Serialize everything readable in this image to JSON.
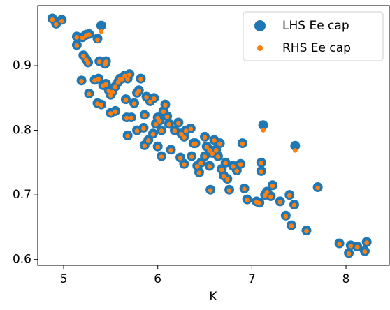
{
  "chart_data": {
    "type": "scatter",
    "x_label": "K",
    "legend": "upper right",
    "xlim": [
      4.725,
      8.46
    ],
    "ylim": [
      0.591,
      0.993
    ],
    "xticks": [
      5,
      6,
      7,
      8
    ],
    "yticks": [
      0.6,
      0.7,
      0.8,
      0.9
    ],
    "series": [
      {
        "name": "LHS Ee cap",
        "color": "#1f77b4",
        "x": [
          4.88,
          4.92,
          4.98,
          5.14,
          5.14,
          5.2,
          5.24,
          5.27,
          5.36,
          5.4,
          5.19,
          5.21,
          5.24,
          5.26,
          5.27,
          5.33,
          5.37,
          5.36,
          5.4,
          5.38,
          5.44,
          5.45,
          5.42,
          5.45,
          5.48,
          5.5,
          5.52,
          5.55,
          5.5,
          5.55,
          5.58,
          5.6,
          5.62,
          5.65,
          5.68,
          5.7,
          5.66,
          5.67,
          5.72,
          5.75,
          5.78,
          5.8,
          5.82,
          5.68,
          5.78,
          5.85,
          5.86,
          5.88,
          5.92,
          5.96,
          5.86,
          5.9,
          5.95,
          5.98,
          6.0,
          6.02,
          6.04,
          6.06,
          6.08,
          6.1,
          6.12,
          6.0,
          6.04,
          6.14,
          6.18,
          6.22,
          6.25,
          6.28,
          6.3,
          6.24,
          6.28,
          6.35,
          6.38,
          6.4,
          6.36,
          6.42,
          6.44,
          6.46,
          6.5,
          6.52,
          6.55,
          6.58,
          6.5,
          6.55,
          6.6,
          6.62,
          6.64,
          6.66,
          6.56,
          6.68,
          6.7,
          6.72,
          6.74,
          6.76,
          6.8,
          6.84,
          6.88,
          6.9,
          6.92,
          6.95,
          7.05,
          7.08,
          7.1,
          7.1,
          7.12,
          7.14,
          7.16,
          7.2,
          7.22,
          7.3,
          7.36,
          7.4,
          7.42,
          7.45,
          7.46,
          7.58,
          7.7,
          7.93,
          8.03,
          8.05,
          8.12,
          8.2,
          8.22
        ],
        "values": [
          0.973,
          0.965,
          0.971,
          0.945,
          0.932,
          0.944,
          0.948,
          0.949,
          0.942,
          0.962,
          0.877,
          0.916,
          0.91,
          0.905,
          0.857,
          0.878,
          0.88,
          0.842,
          0.84,
          0.907,
          0.903,
          0.907,
          0.87,
          0.872,
          0.862,
          0.855,
          0.86,
          0.868,
          0.827,
          0.83,
          0.875,
          0.88,
          0.88,
          0.885,
          0.88,
          0.887,
          0.848,
          0.82,
          0.82,
          0.842,
          0.858,
          0.862,
          0.88,
          0.792,
          0.8,
          0.804,
          0.824,
          0.852,
          0.845,
          0.85,
          0.777,
          0.785,
          0.795,
          0.81,
          0.82,
          0.815,
          0.8,
          0.83,
          0.84,
          0.822,
          0.81,
          0.775,
          0.76,
          0.77,
          0.8,
          0.812,
          0.795,
          0.79,
          0.8,
          0.758,
          0.748,
          0.803,
          0.78,
          0.78,
          0.76,
          0.745,
          0.735,
          0.75,
          0.79,
          0.775,
          0.77,
          0.765,
          0.76,
          0.745,
          0.785,
          0.77,
          0.76,
          0.78,
          0.708,
          0.74,
          0.73,
          0.75,
          0.725,
          0.708,
          0.745,
          0.738,
          0.748,
          0.78,
          0.71,
          0.693,
          0.69,
          0.688,
          0.75,
          0.737,
          0.808,
          0.7,
          0.705,
          0.698,
          0.715,
          0.69,
          0.668,
          0.7,
          0.653,
          0.685,
          0.776,
          0.645,
          0.712,
          0.625,
          0.61,
          0.622,
          0.62,
          0.613,
          0.627
        ]
      },
      {
        "name": "RHS Ee cap",
        "color": "#ff7f0e",
        "x": [
          4.88,
          4.92,
          4.98,
          5.14,
          5.14,
          5.2,
          5.24,
          5.27,
          5.36,
          5.4,
          5.19,
          5.21,
          5.24,
          5.26,
          5.27,
          5.33,
          5.37,
          5.36,
          5.4,
          5.38,
          5.44,
          5.45,
          5.42,
          5.45,
          5.48,
          5.5,
          5.52,
          5.55,
          5.5,
          5.55,
          5.58,
          5.6,
          5.62,
          5.65,
          5.68,
          5.7,
          5.66,
          5.67,
          5.72,
          5.75,
          5.78,
          5.8,
          5.82,
          5.68,
          5.78,
          5.85,
          5.86,
          5.88,
          5.92,
          5.96,
          5.86,
          5.9,
          5.95,
          5.98,
          6.0,
          6.02,
          6.04,
          6.06,
          6.08,
          6.1,
          6.12,
          6.0,
          6.04,
          6.14,
          6.18,
          6.22,
          6.25,
          6.28,
          6.3,
          6.24,
          6.28,
          6.35,
          6.38,
          6.4,
          6.36,
          6.42,
          6.44,
          6.46,
          6.5,
          6.52,
          6.55,
          6.58,
          6.5,
          6.55,
          6.6,
          6.62,
          6.64,
          6.66,
          6.56,
          6.68,
          6.7,
          6.72,
          6.74,
          6.76,
          6.8,
          6.84,
          6.88,
          6.9,
          6.92,
          6.95,
          7.05,
          7.08,
          7.1,
          7.1,
          7.12,
          7.14,
          7.16,
          7.2,
          7.22,
          7.3,
          7.36,
          7.4,
          7.42,
          7.45,
          7.46,
          7.58,
          7.7,
          7.93,
          8.03,
          8.05,
          8.12,
          8.2,
          8.22
        ],
        "values": [
          0.971,
          0.964,
          0.969,
          0.944,
          0.931,
          0.943,
          0.947,
          0.948,
          0.94,
          0.953,
          0.876,
          0.915,
          0.909,
          0.904,
          0.856,
          0.877,
          0.879,
          0.841,
          0.839,
          0.906,
          0.902,
          0.906,
          0.869,
          0.871,
          0.861,
          0.854,
          0.859,
          0.867,
          0.826,
          0.829,
          0.874,
          0.879,
          0.879,
          0.884,
          0.879,
          0.886,
          0.847,
          0.819,
          0.819,
          0.841,
          0.857,
          0.861,
          0.879,
          0.791,
          0.799,
          0.803,
          0.823,
          0.851,
          0.844,
          0.849,
          0.776,
          0.784,
          0.794,
          0.809,
          0.819,
          0.814,
          0.799,
          0.829,
          0.839,
          0.821,
          0.809,
          0.774,
          0.759,
          0.769,
          0.799,
          0.811,
          0.794,
          0.789,
          0.799,
          0.757,
          0.747,
          0.802,
          0.779,
          0.779,
          0.759,
          0.744,
          0.734,
          0.749,
          0.789,
          0.774,
          0.769,
          0.764,
          0.759,
          0.744,
          0.784,
          0.769,
          0.759,
          0.779,
          0.707,
          0.739,
          0.729,
          0.749,
          0.724,
          0.707,
          0.744,
          0.737,
          0.747,
          0.779,
          0.709,
          0.692,
          0.689,
          0.687,
          0.749,
          0.736,
          0.8,
          0.699,
          0.704,
          0.697,
          0.714,
          0.689,
          0.667,
          0.699,
          0.652,
          0.684,
          0.769,
          0.644,
          0.711,
          0.624,
          0.609,
          0.621,
          0.619,
          0.612,
          0.626
        ]
      }
    ]
  }
}
